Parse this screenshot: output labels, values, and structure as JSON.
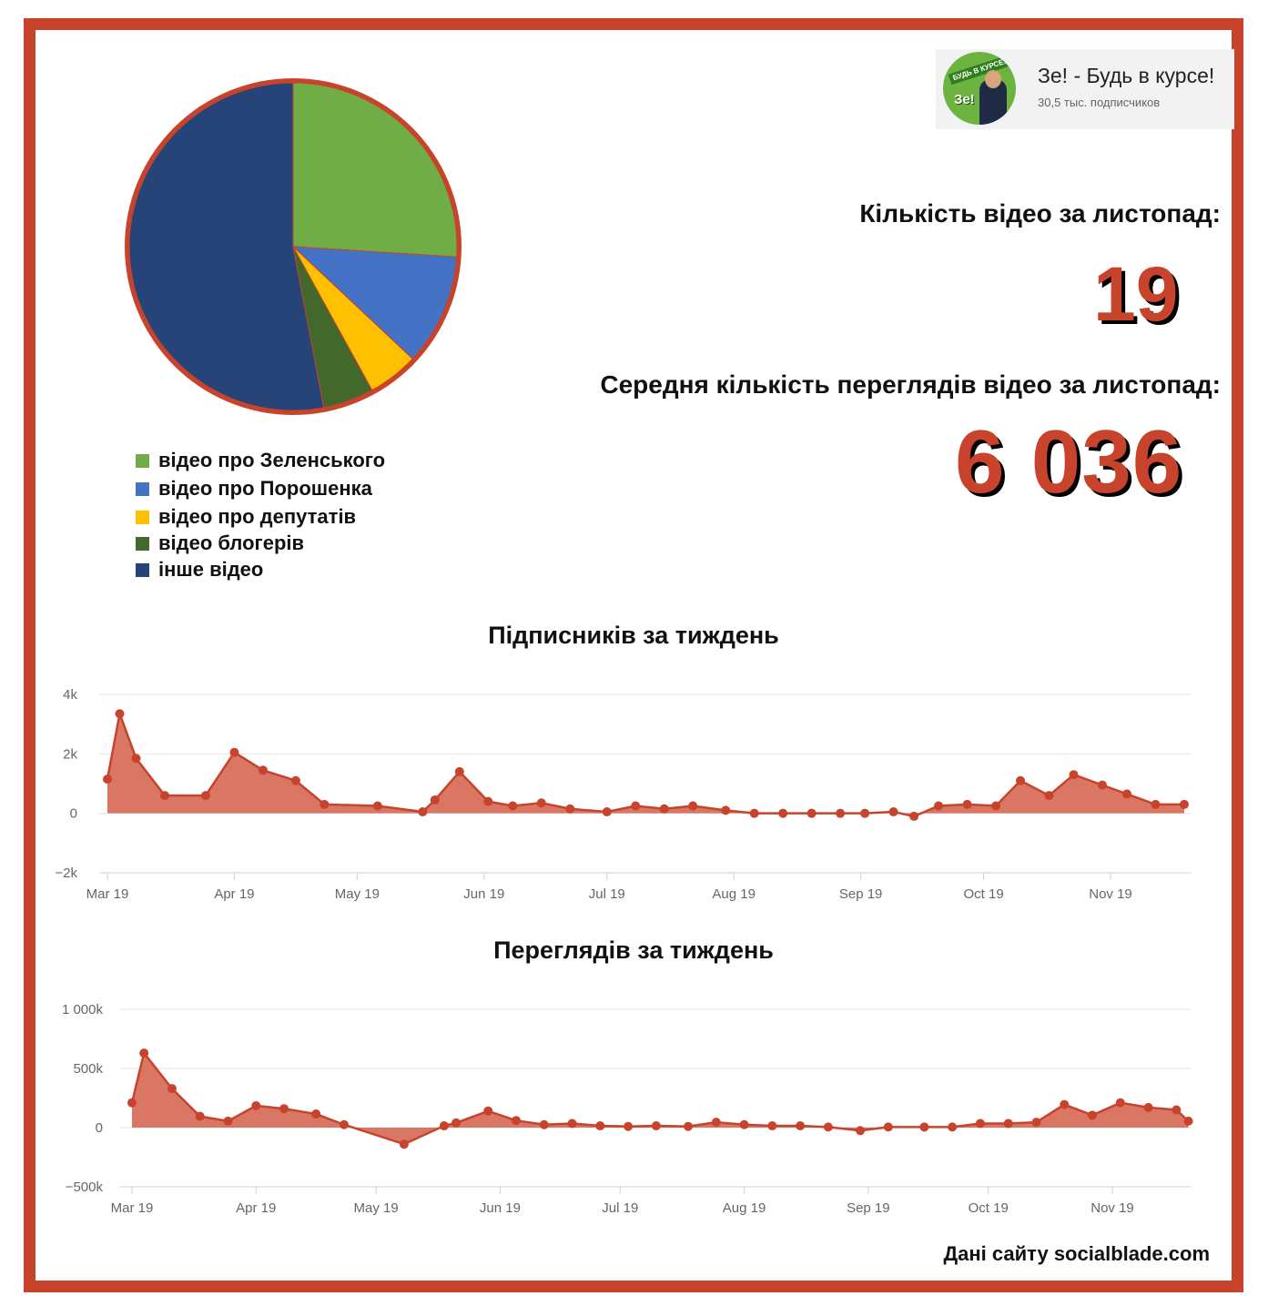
{
  "channel": {
    "name": "Зе! - Будь в курсе!",
    "subscribers": "30,5 тыс. подписчиков",
    "avatar_banner": "БУДЬ В КУРСЕ!",
    "avatar_mark": "Зе!"
  },
  "stats": {
    "videos_label": "Кількість відео за листопад:",
    "videos_value": "19",
    "avg_views_label": "Середня кількість переглядів відео за листопад:",
    "avg_views_value": "6 036"
  },
  "footer": "Дані сайту socialblade.com",
  "colors": {
    "frame": "#c8432b",
    "accent": "#c8432b",
    "area_fill": "#d8705c"
  },
  "chart_data": [
    {
      "type": "pie",
      "slices": [
        {
          "label": "відео про Зеленського",
          "value": 26,
          "color": "#70ad47"
        },
        {
          "label": "відео про Порошенка",
          "value": 11,
          "color": "#4472c4"
        },
        {
          "label": "відео про депутатів",
          "value": 5,
          "color": "#ffc000"
        },
        {
          "label": "відео блогерів",
          "value": 5,
          "color": "#43682b"
        },
        {
          "label": "інше відео",
          "value": 53,
          "color": "#264478"
        }
      ],
      "legend_position": "bottom-left"
    },
    {
      "type": "area",
      "title": "Підписників за тиждень",
      "x_ticks": [
        "Mar 19",
        "Apr 19",
        "May 19",
        "Jun 19",
        "Jul 19",
        "Aug 19",
        "Sep 19",
        "Oct 19",
        "Nov 19"
      ],
      "y_ticks": [
        "4k",
        "2k",
        "0",
        "−2k"
      ],
      "ylim": [
        -2000,
        4000
      ],
      "grid": true,
      "x": [
        "2019-03-01",
        "2019-03-04",
        "2019-03-08",
        "2019-03-15",
        "2019-03-25",
        "2019-04-01",
        "2019-04-08",
        "2019-04-16",
        "2019-04-23",
        "2019-05-06",
        "2019-05-17",
        "2019-05-20",
        "2019-05-26",
        "2019-06-02",
        "2019-06-08",
        "2019-06-15",
        "2019-06-22",
        "2019-07-01",
        "2019-07-08",
        "2019-07-15",
        "2019-07-22",
        "2019-07-30",
        "2019-08-06",
        "2019-08-13",
        "2019-08-20",
        "2019-08-27",
        "2019-09-02",
        "2019-09-09",
        "2019-09-14",
        "2019-09-20",
        "2019-09-27",
        "2019-10-04",
        "2019-10-10",
        "2019-10-17",
        "2019-10-23",
        "2019-10-30",
        "2019-11-05",
        "2019-11-12",
        "2019-11-19"
      ],
      "values": [
        1150,
        3350,
        1850,
        600,
        600,
        2050,
        1450,
        1100,
        300,
        250,
        50,
        450,
        1400,
        400,
        250,
        350,
        150,
        50,
        250,
        150,
        250,
        100,
        0,
        0,
        0,
        0,
        0,
        50,
        -100,
        250,
        300,
        250,
        1100,
        600,
        1300,
        950,
        650,
        300,
        300
      ]
    },
    {
      "type": "area",
      "title": "Переглядів за тиждень",
      "x_ticks": [
        "Mar 19",
        "Apr 19",
        "May 19",
        "Jun 19",
        "Jul 19",
        "Aug 19",
        "Sep 19",
        "Oct 19",
        "Nov 19"
      ],
      "y_ticks": [
        "1 000k",
        "500k",
        "0",
        "−500k"
      ],
      "ylim": [
        -500000,
        1000000
      ],
      "grid": true,
      "x": [
        "2019-03-01",
        "2019-03-04",
        "2019-03-11",
        "2019-03-18",
        "2019-03-25",
        "2019-04-01",
        "2019-04-08",
        "2019-04-16",
        "2019-04-23",
        "2019-05-08",
        "2019-05-18",
        "2019-05-21",
        "2019-05-29",
        "2019-06-05",
        "2019-06-12",
        "2019-06-19",
        "2019-06-26",
        "2019-07-03",
        "2019-07-10",
        "2019-07-18",
        "2019-07-25",
        "2019-08-01",
        "2019-08-08",
        "2019-08-15",
        "2019-08-22",
        "2019-08-30",
        "2019-09-06",
        "2019-09-15",
        "2019-09-22",
        "2019-09-29",
        "2019-10-06",
        "2019-10-13",
        "2019-10-20",
        "2019-10-27",
        "2019-11-03",
        "2019-11-10",
        "2019-11-17",
        "2019-11-20"
      ],
      "values": [
        210000,
        630000,
        330000,
        95000,
        55000,
        185000,
        160000,
        115000,
        25000,
        -140000,
        15000,
        40000,
        140000,
        60000,
        25000,
        35000,
        15000,
        10000,
        15000,
        10000,
        45000,
        25000,
        15000,
        15000,
        5000,
        -25000,
        5000,
        5000,
        5000,
        35000,
        35000,
        45000,
        195000,
        105000,
        210000,
        170000,
        150000,
        55000
      ]
    }
  ]
}
